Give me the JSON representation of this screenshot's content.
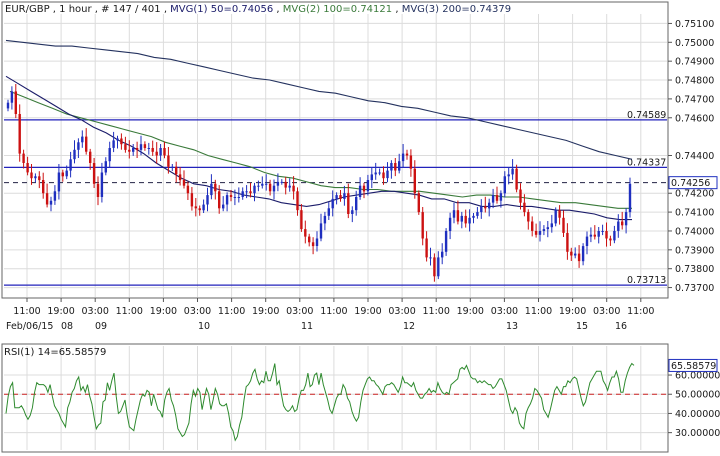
{
  "header": {
    "symbol": "EUR/GBP",
    "timeframe": "1 hour",
    "bars": "# 147 / 401",
    "mvg1": "MVG(1) 50=0.74056",
    "mvg2": "MVG(2) 100=0.74121",
    "mvg3": "MVG(3) 200=0.74379"
  },
  "colors": {
    "up": "#1f2fbf",
    "down": "#cc1111",
    "mvg1": "#1b1c6a",
    "mvg2": "#3a7a3a",
    "mvg3": "#24325f",
    "hline": "#2222bb",
    "dash": "#222244",
    "rsi": "#2e8a2e",
    "rsi_level": "#cc2222",
    "grid": "#dcdcdc",
    "label_box": "#1f2fbf"
  },
  "chart_data": [
    {
      "type": "candlestick",
      "title": "",
      "ylim": [
        0.7365,
        0.7515
      ],
      "y_ticks": [
        "0.75100",
        "0.75000",
        "0.74900",
        "0.74800",
        "0.74700",
        "0.74600",
        "0.74400",
        "0.74200",
        "0.74100",
        "0.74000",
        "0.73900",
        "0.73800",
        "0.73700"
      ],
      "time_ticks": [
        "11:00",
        "19:00",
        "03:00",
        "11:00",
        "19:00",
        "03:00",
        "11:00",
        "19:00",
        "03:00",
        "11:00",
        "19:00",
        "03:00",
        "11:00",
        "19:00",
        "03:00",
        "11:00",
        "19:00",
        "03:00",
        "11:00"
      ],
      "date_labels": [
        "Feb/06/15",
        "08",
        "09",
        "10",
        "11",
        "12",
        "13",
        "15",
        "16"
      ],
      "levels": [
        {
          "label": "0.74589",
          "value": 0.74589
        },
        {
          "label": "0.74337",
          "value": 0.74337
        },
        {
          "label": "0.73713",
          "value": 0.73713
        }
      ],
      "current_price": {
        "label": "0.74256",
        "value": 0.74256
      },
      "legend": "",
      "series": [
        {
          "name": "MVG(1) 50",
          "value": 0.74056
        },
        {
          "name": "MVG(2) 100",
          "value": 0.74121
        },
        {
          "name": "MVG(3) 200",
          "value": 0.74379
        }
      ],
      "ma1": [
        0.7482,
        0.7478,
        0.7474,
        0.747,
        0.7466,
        0.7462,
        0.7459,
        0.7455,
        0.7452,
        0.7448,
        0.7445,
        0.7441,
        0.7436,
        0.7432,
        0.7428,
        0.7425,
        0.7424,
        0.7422,
        0.7421,
        0.7419,
        0.7418,
        0.7417,
        0.7415,
        0.7414,
        0.7413,
        0.7414,
        0.7416,
        0.7418,
        0.7419,
        0.742,
        0.7421,
        0.7421,
        0.742,
        0.7419,
        0.7417,
        0.7417,
        0.7415,
        0.7415,
        0.7413,
        0.7413,
        0.7414,
        0.7413,
        0.7413,
        0.7412,
        0.7411,
        0.7411,
        0.741,
        0.7409,
        0.7407,
        0.7406,
        0.7406
      ],
      "ma2": [
        0.7474,
        0.7471,
        0.7468,
        0.7465,
        0.7462,
        0.746,
        0.7458,
        0.7456,
        0.7454,
        0.7452,
        0.745,
        0.7447,
        0.7445,
        0.7443,
        0.744,
        0.7438,
        0.7436,
        0.7434,
        0.7431,
        0.7429,
        0.7428,
        0.7426,
        0.7424,
        0.7423,
        0.7423,
        0.7422,
        0.7422,
        0.7421,
        0.7421,
        0.7421,
        0.742,
        0.7419,
        0.7418,
        0.7419,
        0.7419,
        0.7418,
        0.7418,
        0.7417,
        0.7416,
        0.7415,
        0.7415,
        0.7414,
        0.7413,
        0.7412,
        0.7412
      ],
      "ma3": [
        0.7501,
        0.75,
        0.7499,
        0.7498,
        0.7498,
        0.7497,
        0.7496,
        0.7495,
        0.7494,
        0.7492,
        0.7491,
        0.7489,
        0.7487,
        0.7485,
        0.7483,
        0.7481,
        0.748,
        0.7478,
        0.7476,
        0.7474,
        0.7473,
        0.7471,
        0.7469,
        0.7468,
        0.7466,
        0.7465,
        0.7463,
        0.7461,
        0.746,
        0.7458,
        0.7456,
        0.7454,
        0.7452,
        0.745,
        0.7448,
        0.7445,
        0.7442,
        0.744,
        0.7438
      ],
      "closes": [
        0.7468,
        0.7474,
        0.7462,
        0.7441,
        0.7436,
        0.7431,
        0.7428,
        0.7429,
        0.7427,
        0.742,
        0.7414,
        0.7416,
        0.7421,
        0.7431,
        0.7429,
        0.7432,
        0.7438,
        0.7443,
        0.7447,
        0.745,
        0.7442,
        0.7436,
        0.7425,
        0.7418,
        0.7431,
        0.7437,
        0.7444,
        0.7448,
        0.7449,
        0.7446,
        0.7443,
        0.7442,
        0.7444,
        0.7443,
        0.7446,
        0.7444,
        0.7444,
        0.7442,
        0.744,
        0.7444,
        0.744,
        0.7434,
        0.7434,
        0.743,
        0.7427,
        0.7424,
        0.742,
        0.7413,
        0.7412,
        0.7411,
        0.7414,
        0.7419,
        0.7425,
        0.7421,
        0.7412,
        0.7414,
        0.7419,
        0.7418,
        0.7418,
        0.7418,
        0.7421,
        0.7421,
        0.742,
        0.7424,
        0.7424,
        0.7425,
        0.7425,
        0.7421,
        0.7424,
        0.7426,
        0.7426,
        0.7423,
        0.7424,
        0.7421,
        0.7411,
        0.7401,
        0.7397,
        0.7394,
        0.7392,
        0.7396,
        0.7404,
        0.7408,
        0.7412,
        0.7417,
        0.7419,
        0.7417,
        0.742,
        0.7409,
        0.7411,
        0.7418,
        0.7424,
        0.7421,
        0.7427,
        0.743,
        0.7431,
        0.7431,
        0.7428,
        0.7432,
        0.7436,
        0.7432,
        0.7437,
        0.7441,
        0.744,
        0.7433,
        0.742,
        0.741,
        0.7396,
        0.7386,
        0.7386,
        0.7376,
        0.7386,
        0.7389,
        0.74,
        0.7407,
        0.7411,
        0.7405,
        0.7408,
        0.7404,
        0.7407,
        0.7408,
        0.741,
        0.7413,
        0.7412,
        0.7415,
        0.7419,
        0.7416,
        0.742,
        0.7429,
        0.743,
        0.7433,
        0.7422,
        0.7415,
        0.741,
        0.7405,
        0.74,
        0.7398,
        0.74,
        0.7401,
        0.7402,
        0.7404,
        0.7411,
        0.7407,
        0.7399,
        0.7389,
        0.7387,
        0.7388,
        0.7384,
        0.7392,
        0.7397,
        0.7398,
        0.7397,
        0.74,
        0.74,
        0.7396,
        0.7395,
        0.74,
        0.7405,
        0.7403,
        0.741,
        0.7425
      ]
    },
    {
      "type": "line",
      "title": "RSI(1) 14=65.58579",
      "current_label": "65.58579",
      "ylim": [
        22,
        72
      ],
      "y_ticks": [
        "60.00000",
        "50.00000",
        "40.00000",
        "30.00000"
      ],
      "level": 50,
      "values": [
        40,
        49,
        54,
        56,
        43,
        43,
        43,
        44,
        42,
        39,
        37,
        39,
        43,
        51,
        56,
        55,
        55,
        55,
        54,
        51,
        55,
        49,
        44,
        42,
        40,
        37,
        35,
        33,
        43,
        46,
        51,
        53,
        57,
        59,
        52,
        54,
        51,
        55,
        49,
        45,
        38,
        32,
        34,
        35,
        46,
        47,
        56,
        52,
        57,
        61,
        49,
        40,
        41,
        44,
        47,
        39,
        33,
        32,
        31,
        37,
        42,
        47,
        50,
        49,
        52,
        51,
        44,
        50,
        46,
        42,
        41,
        38,
        47,
        51,
        53,
        47,
        44,
        39,
        32,
        30,
        28,
        29,
        32,
        35,
        45,
        52,
        49,
        53,
        51,
        42,
        48,
        53,
        50,
        42,
        47,
        53,
        50,
        45,
        44,
        44,
        45,
        40,
        33,
        31,
        26,
        28,
        34,
        38,
        47,
        54,
        55,
        57,
        61,
        63,
        58,
        55,
        57,
        56,
        62,
        57,
        57,
        61,
        66,
        55,
        57,
        50,
        44,
        42,
        41,
        42,
        44,
        41,
        42,
        48,
        52,
        52,
        55,
        61,
        54,
        55,
        60,
        61,
        55,
        61,
        55,
        51,
        47,
        42,
        40,
        44,
        48,
        50,
        50,
        55,
        53,
        48,
        46,
        41,
        38,
        36,
        38,
        46,
        52,
        55,
        58,
        59,
        57,
        57,
        55,
        54,
        52,
        50,
        54,
        55,
        55,
        56,
        55,
        53,
        51,
        54,
        59,
        56,
        56,
        55,
        54,
        56,
        52,
        50,
        48,
        48,
        50,
        51,
        53,
        51,
        52,
        51,
        56,
        53,
        51,
        50,
        51,
        50,
        55,
        56,
        57,
        58,
        63,
        64,
        63,
        65,
        62,
        59,
        58,
        58,
        56,
        57,
        56,
        57,
        56,
        55,
        55,
        53,
        54,
        56,
        58,
        58,
        55,
        52,
        47,
        42,
        40,
        43,
        41,
        35,
        33,
        32,
        40,
        43,
        45,
        48,
        53,
        52,
        50,
        48,
        42,
        40,
        38,
        42,
        47,
        52,
        54,
        52,
        50,
        54,
        54,
        57,
        56,
        58,
        59,
        58,
        53,
        48,
        44,
        46,
        51,
        56,
        58,
        60,
        62,
        62,
        62,
        57,
        55,
        52,
        56,
        59,
        59,
        62,
        58,
        51,
        51,
        57,
        61,
        64,
        66,
        65
      ]
    }
  ]
}
